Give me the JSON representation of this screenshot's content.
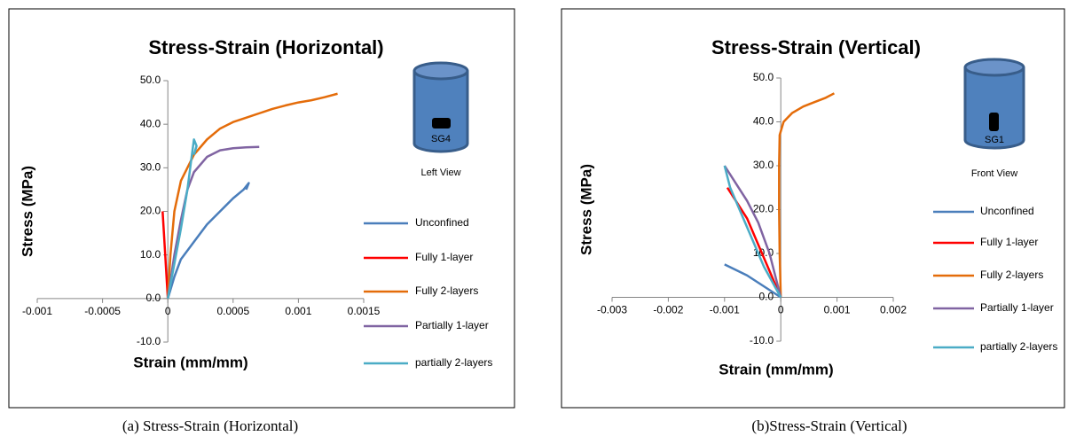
{
  "chart_data": [
    {
      "type": "line",
      "title": "Stress-Strain (Horizontal)",
      "x_label": "Strain (mm/mm)",
      "y_label": "Stress (MPa)",
      "annotations": [
        "SG4",
        "Left View"
      ],
      "caption": "(a)   Stress-Strain (Horizontal)",
      "xlim": [
        -0.001,
        0.0015
      ],
      "xticks": [
        -0.001,
        -0.0005,
        0,
        0.0005,
        0.001,
        0.0015
      ],
      "ylim": [
        -10,
        50
      ],
      "yticks": [
        {
          "value": -10,
          "label": "-10.0"
        },
        {
          "value": 0,
          "label": "0.0"
        },
        {
          "value": 10,
          "label": "10.0"
        },
        {
          "value": 20,
          "label": "20.0"
        },
        {
          "value": 30,
          "label": "30.0"
        },
        {
          "value": 40,
          "label": "40.0"
        },
        {
          "value": 50,
          "label": "50.0"
        }
      ],
      "grid": false,
      "legend": "right",
      "series": [
        {
          "name": "Unconfined",
          "color": "#4a7ebb",
          "x": [
            0,
            5e-05,
            0.0001,
            0.0002,
            0.0003,
            0.0004,
            0.0005,
            0.00058,
            0.00062,
            0.0006
          ],
          "values": [
            0,
            5,
            9,
            13,
            17,
            20,
            23,
            25,
            26.5,
            25
          ]
        },
        {
          "name": "Fully 1-layer",
          "color": "#ff0000",
          "x": [
            0,
            -1e-05,
            -2e-05,
            -3e-05,
            -4e-05
          ],
          "values": [
            0,
            5,
            10,
            15,
            20
          ]
        },
        {
          "name": "Fully 2-layers",
          "color": "#e46c0a",
          "x": [
            0,
            2e-05,
            5e-05,
            0.0001,
            0.0002,
            0.0003,
            0.0004,
            0.0005,
            0.0006,
            0.0007,
            0.0008,
            0.0009,
            0.001,
            0.0011,
            0.0012,
            0.0013
          ],
          "values": [
            0,
            10,
            20,
            27,
            33,
            36.5,
            39,
            40.5,
            41.5,
            42.5,
            43.5,
            44.3,
            45,
            45.5,
            46.2,
            47
          ]
        },
        {
          "name": "Partially 1-layer",
          "color": "#8064a2",
          "x": [
            0,
            5e-05,
            0.0001,
            0.00015,
            0.0002,
            0.0003,
            0.0004,
            0.0005,
            0.0006,
            0.0007
          ],
          "values": [
            0,
            10,
            18,
            25,
            29,
            32.5,
            34,
            34.5,
            34.7,
            34.8
          ]
        },
        {
          "name": "partially 2-layers",
          "color": "#4bacc6",
          "x": [
            0,
            5e-05,
            0.0001,
            0.00015,
            0.00018,
            0.0002,
            0.00022,
            0.0002
          ],
          "values": [
            0,
            8,
            16,
            25,
            32,
            36.5,
            35,
            33
          ]
        }
      ]
    },
    {
      "type": "line",
      "title": "Stress-Strain (Vertical)",
      "x_label": "Strain (mm/mm)",
      "y_label": "Stress (MPa)",
      "annotations": [
        "SG1",
        "Front View"
      ],
      "caption": "(b)Stress-Strain (Vertical)",
      "xlim": [
        -0.003,
        0.002
      ],
      "xticks": [
        -0.003,
        -0.002,
        -0.001,
        0,
        0.001,
        0.002
      ],
      "ylim": [
        -10,
        50
      ],
      "yticks": [
        {
          "value": -10,
          "label": "-10.0"
        },
        {
          "value": 0,
          "label": "0.0"
        },
        {
          "value": 10,
          "label": "10.0"
        },
        {
          "value": 20,
          "label": "20.0"
        },
        {
          "value": 30,
          "label": "30.0"
        },
        {
          "value": 40,
          "label": "40.0"
        },
        {
          "value": 50,
          "label": "50.0"
        }
      ],
      "grid": false,
      "legend": "right",
      "series": [
        {
          "name": "Unconfined",
          "color": "#4a7ebb",
          "x": [
            0,
            -0.0003,
            -0.0006,
            -0.001
          ],
          "values": [
            0,
            2.5,
            5,
            7.5
          ]
        },
        {
          "name": "Fully 1-layer",
          "color": "#ff0000",
          "x": [
            0,
            -0.0002,
            -0.0004,
            -0.0006,
            -0.0008,
            -0.00095
          ],
          "values": [
            0,
            6,
            12,
            18,
            22,
            25
          ]
        },
        {
          "name": "Fully 2-layers",
          "color": "#e46c0a",
          "x": [
            0,
            -2e-05,
            -3e-05,
            -3e-05,
            -2e-05,
            5e-05,
            0.0002,
            0.0004,
            0.0006,
            0.0008,
            0.00095
          ],
          "values": [
            0,
            10,
            20,
            30,
            37,
            40,
            42,
            43.5,
            44.5,
            45.5,
            46.5
          ]
        },
        {
          "name": "Partially 1-layer",
          "color": "#8064a2",
          "x": [
            0,
            -0.0002,
            -0.0004,
            -0.0006,
            -0.0008,
            -0.001
          ],
          "values": [
            0,
            10,
            17,
            22,
            26,
            30
          ]
        },
        {
          "name": "partially 2-layers",
          "color": "#4bacc6",
          "x": [
            0,
            -0.0003,
            -0.0005,
            -0.0007,
            -0.0009,
            -0.001
          ],
          "values": [
            0,
            7,
            13,
            19,
            25,
            30
          ]
        }
      ]
    }
  ]
}
